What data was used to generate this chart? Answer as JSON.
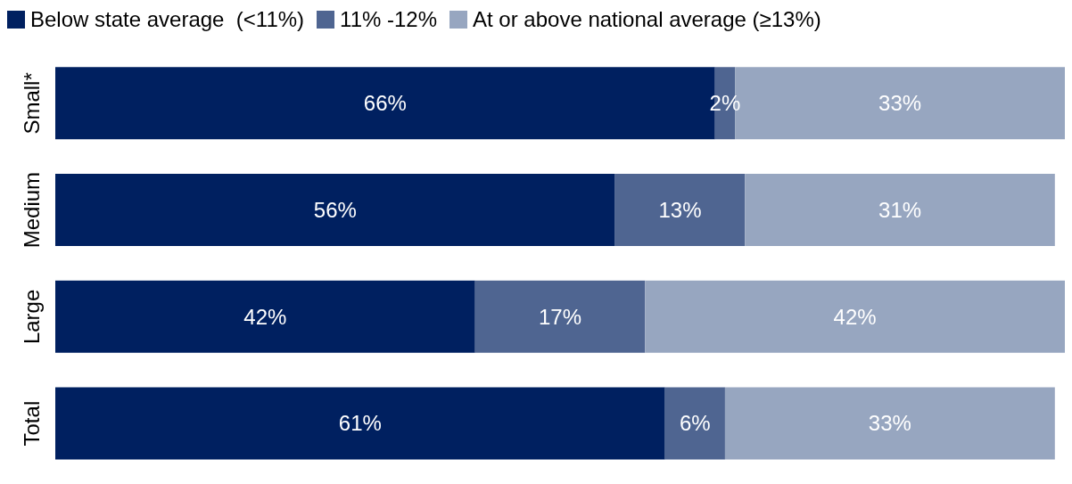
{
  "chart_data": {
    "type": "bar",
    "orientation": "horizontal",
    "stacked": true,
    "categories": [
      "Small*",
      "Medium",
      "Large",
      "Total"
    ],
    "legend": "top left",
    "grid": false,
    "series": [
      {
        "name": "Below state average  (<11%)",
        "color": "#002060",
        "values": [
          66,
          56,
          42,
          61
        ],
        "value_labels": [
          "66%",
          "56%",
          "42%",
          "61%"
        ]
      },
      {
        "name": "11% -12%",
        "color": "#4f6591",
        "values": [
          2,
          13,
          17,
          6
        ],
        "value_labels": [
          "2%",
          "13%",
          "17%",
          "6%"
        ]
      },
      {
        "name": "At or above national average (≥13%)",
        "color": "#97a6c0",
        "values": [
          33,
          31,
          42,
          33
        ],
        "value_labels": [
          "33%",
          "31%",
          "42%",
          "33%"
        ]
      }
    ]
  }
}
